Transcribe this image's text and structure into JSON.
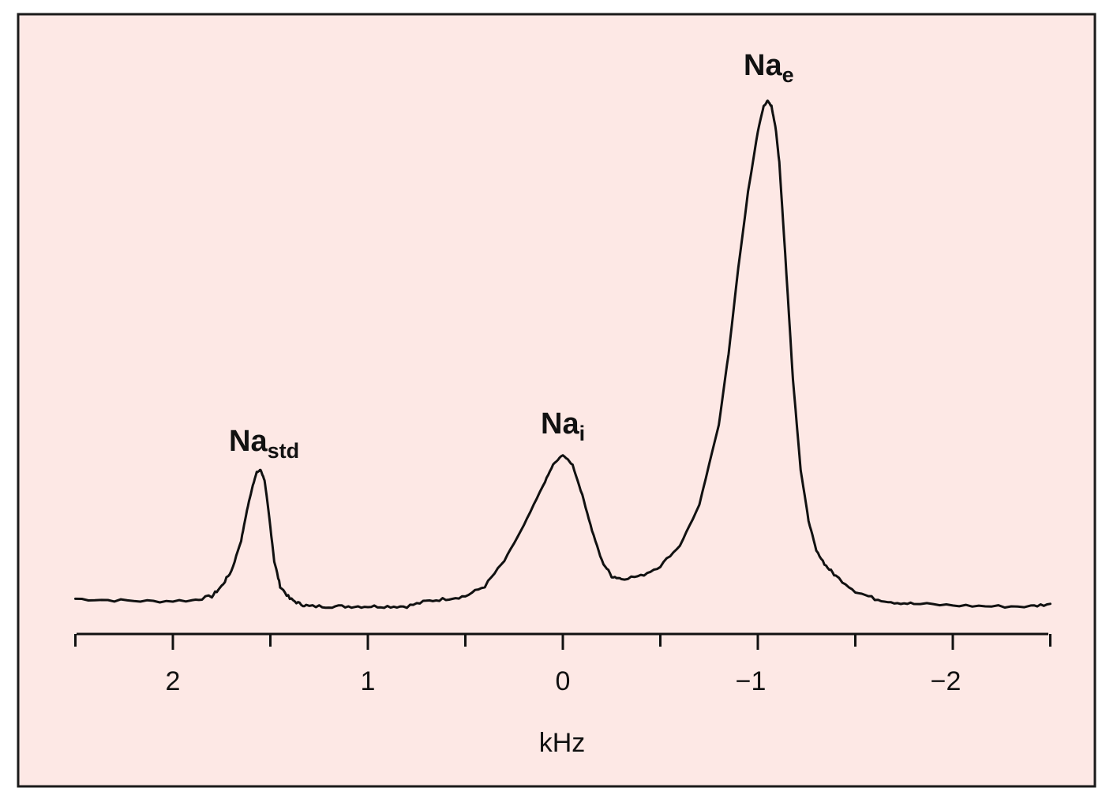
{
  "colors": {
    "panel_background": "#fde8e5",
    "frame": "#1a1a1a",
    "trace": "#111111",
    "text": "#111111"
  },
  "chart_data": {
    "type": "line",
    "title": "",
    "xlabel": "kHz",
    "ylabel": "",
    "x_reversed": true,
    "xlim": [
      2.5,
      -2.5
    ],
    "ylim": [
      0,
      1
    ],
    "grid": false,
    "x_ticks": [
      {
        "value": 2,
        "label": "2"
      },
      {
        "value": 1,
        "label": "1"
      },
      {
        "value": 0,
        "label": "0"
      },
      {
        "value": -1,
        "label": "−1"
      },
      {
        "value": -2,
        "label": "−2"
      }
    ],
    "x_minor_ticks": [
      2.5,
      1.5,
      0.5,
      -0.5,
      -1.5,
      -2.5
    ],
    "peaks": [
      {
        "base": "Na",
        "subscript": "std",
        "x": 1.55,
        "height": 0.27
      },
      {
        "base": "Na",
        "subscript": "i",
        "x": 0.0,
        "height": 0.3
      },
      {
        "base": "Na",
        "subscript": "e",
        "x": -1.07,
        "height": 1.0
      }
    ],
    "series": [
      {
        "x": [
          2.5,
          2.3,
          2.1,
          1.9,
          1.8,
          1.75,
          1.7,
          1.65,
          1.62,
          1.59,
          1.57,
          1.55,
          1.53,
          1.51,
          1.48,
          1.45,
          1.4,
          1.35,
          1.3,
          1.2,
          1.1,
          1.0,
          0.9,
          0.8,
          0.7,
          0.6,
          0.5,
          0.4,
          0.3,
          0.2,
          0.1,
          0.05,
          0.0,
          -0.05,
          -0.1,
          -0.15,
          -0.2,
          -0.25,
          -0.3,
          -0.4,
          -0.5,
          -0.6,
          -0.7,
          -0.8,
          -0.85,
          -0.9,
          -0.95,
          -1.0,
          -1.03,
          -1.05,
          -1.07,
          -1.09,
          -1.11,
          -1.14,
          -1.18,
          -1.22,
          -1.26,
          -1.3,
          -1.35,
          -1.4,
          -1.5,
          -1.6,
          -1.7,
          -1.8,
          -2.0,
          -2.2,
          -2.4,
          -2.5
        ],
        "y": [
          0.015,
          0.012,
          0.01,
          0.012,
          0.02,
          0.04,
          0.07,
          0.13,
          0.19,
          0.24,
          0.265,
          0.27,
          0.25,
          0.19,
          0.09,
          0.04,
          0.015,
          0.005,
          0.0,
          0.0,
          0.0,
          0.0,
          0.0,
          0.0,
          0.01,
          0.015,
          0.02,
          0.04,
          0.09,
          0.16,
          0.24,
          0.28,
          0.3,
          0.28,
          0.22,
          0.15,
          0.09,
          0.06,
          0.055,
          0.06,
          0.08,
          0.12,
          0.2,
          0.36,
          0.5,
          0.67,
          0.82,
          0.94,
          0.99,
          1.0,
          0.99,
          0.95,
          0.88,
          0.7,
          0.45,
          0.27,
          0.17,
          0.11,
          0.08,
          0.06,
          0.03,
          0.015,
          0.008,
          0.005,
          0.002,
          0.0,
          0.0,
          0.005
        ]
      }
    ]
  },
  "labels": {
    "axis_x": "kHz",
    "ticks": [
      "2",
      "1",
      "0",
      "−1",
      "−2"
    ],
    "peak_std_base": "Na",
    "peak_std_sub": "std",
    "peak_i_base": "Na",
    "peak_i_sub": "i",
    "peak_e_base": "Na",
    "peak_e_sub": "e"
  }
}
